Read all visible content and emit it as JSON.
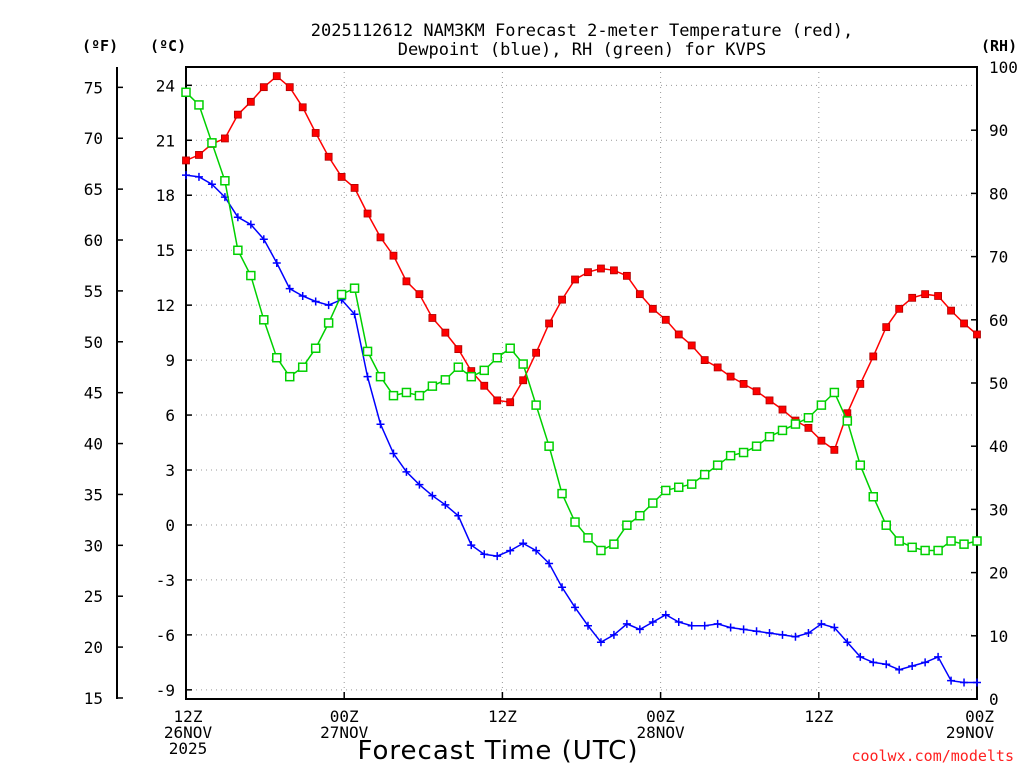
{
  "chart_data": {
    "type": "line",
    "title_line1": "2025112612 NAM3KM Forecast 2-meter Temperature (red),",
    "title_line2": "Dewpoint (blue), RH (green) for KVPS",
    "xlabel": "Forecast Time (UTC)",
    "credit": "coolwx.com/modelts",
    "unit_labels": {
      "fahrenheit": "(ºF)",
      "celsius": "(ºC)",
      "rh": "(RH)"
    },
    "x_range_hours": [
      0,
      60
    ],
    "x_ticks": [
      {
        "hour": 0,
        "l1": "12Z",
        "l2": "26NOV",
        "l3": "2025"
      },
      {
        "hour": 12,
        "l1": "00Z",
        "l2": "27NOV",
        "l3": ""
      },
      {
        "hour": 24,
        "l1": "12Z",
        "l2": "",
        "l3": ""
      },
      {
        "hour": 36,
        "l1": "00Z",
        "l2": "28NOV",
        "l3": ""
      },
      {
        "hour": 48,
        "l1": "12Z",
        "l2": "",
        "l3": ""
      },
      {
        "hour": 60,
        "l1": "00Z",
        "l2": "29NOV",
        "l3": ""
      }
    ],
    "celsius_axis": {
      "range": [
        -9.5,
        25
      ],
      "ticks": [
        -9,
        -6,
        -3,
        0,
        3,
        6,
        9,
        12,
        15,
        18,
        21,
        24
      ]
    },
    "fahrenheit_axis": {
      "ticks": [
        15,
        20,
        25,
        30,
        35,
        40,
        45,
        50,
        55,
        60,
        65,
        70,
        75
      ]
    },
    "rh_axis": {
      "range": [
        0,
        100
      ],
      "ticks": [
        0,
        10,
        20,
        30,
        40,
        50,
        60,
        70,
        80,
        90,
        100
      ]
    },
    "series": [
      {
        "name": "2-meter Temperature",
        "units": "C",
        "color": "#ff0000",
        "marker": "filled-square",
        "values": [
          19.9,
          20.2,
          20.8,
          21.1,
          22.4,
          23.1,
          23.9,
          24.5,
          23.9,
          22.8,
          21.4,
          20.1,
          19.0,
          18.4,
          17.0,
          15.7,
          14.7,
          13.3,
          12.6,
          11.3,
          10.5,
          9.6,
          8.4,
          7.6,
          6.8,
          6.7,
          7.9,
          9.4,
          11.0,
          12.3,
          13.4,
          13.8,
          14.0,
          13.9,
          13.6,
          12.6,
          11.8,
          11.2,
          10.4,
          9.8,
          9.0,
          8.6,
          8.1,
          7.7,
          7.3,
          6.8,
          6.3,
          5.7,
          5.3,
          4.6,
          4.1,
          6.1,
          7.7,
          9.2,
          10.8,
          11.8,
          12.4,
          12.6,
          12.5,
          11.7,
          11.0,
          10.4
        ]
      },
      {
        "name": "Dewpoint",
        "units": "C",
        "color": "#0000ff",
        "marker": "plus",
        "values": [
          19.1,
          19.0,
          18.6,
          17.9,
          16.8,
          16.4,
          15.6,
          14.3,
          12.9,
          12.5,
          12.2,
          12.0,
          12.3,
          11.5,
          8.1,
          5.5,
          3.9,
          2.9,
          2.2,
          1.6,
          1.1,
          0.5,
          -1.1,
          -1.6,
          -1.7,
          -1.4,
          -1.0,
          -1.4,
          -2.1,
          -3.4,
          -4.5,
          -5.5,
          -6.4,
          -6.0,
          -5.4,
          -5.7,
          -5.3,
          -4.9,
          -5.3,
          -5.5,
          -5.5,
          -5.4,
          -5.6,
          -5.7,
          -5.8,
          -5.9,
          -6.0,
          -6.1,
          -5.9,
          -5.4,
          -5.6,
          -6.4,
          -7.2,
          -7.5,
          -7.6,
          -7.9,
          -7.7,
          -7.5,
          -7.2,
          -8.5,
          -8.6,
          -8.6
        ]
      },
      {
        "name": "RH",
        "units": "%",
        "color": "#00d000",
        "marker": "open-square",
        "values": [
          96,
          94,
          88,
          82,
          71,
          67,
          60,
          54,
          51,
          52.5,
          55.5,
          59.5,
          64,
          65,
          55,
          51,
          48,
          48.5,
          48,
          49.5,
          50.5,
          52.5,
          51,
          52,
          54,
          55.5,
          53,
          46.5,
          40,
          32.5,
          28,
          25.5,
          23.5,
          24.5,
          27.5,
          29,
          31,
          33,
          33.5,
          34,
          35.5,
          37,
          38.5,
          39,
          40,
          41.5,
          42.5,
          43.5,
          44.5,
          46.5,
          48.5,
          44,
          37,
          32,
          27.5,
          25,
          24,
          23.5,
          23.5,
          25,
          24.5,
          25
        ]
      }
    ]
  }
}
